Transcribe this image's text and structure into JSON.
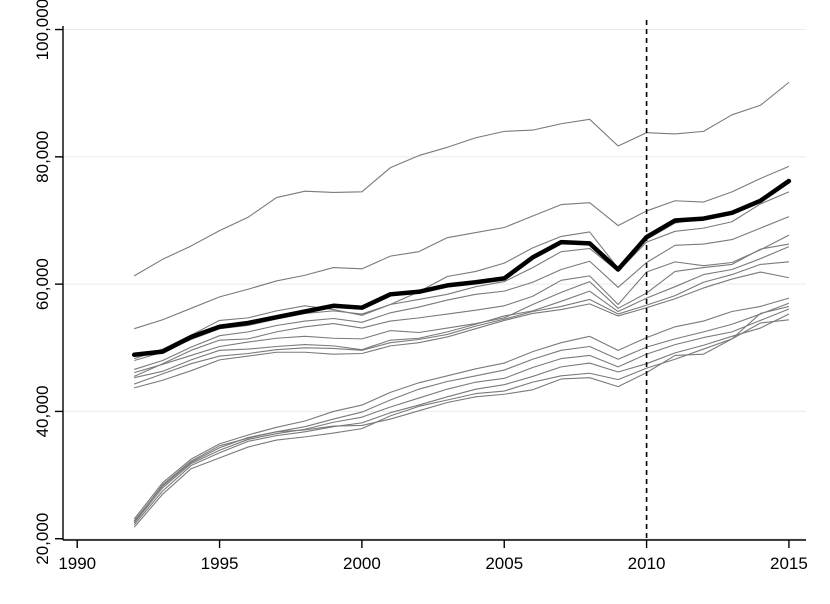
{
  "chart_data": {
    "type": "line",
    "title": "",
    "xlabel": "",
    "ylabel": "",
    "xlim": [
      1989.5,
      2015.6
    ],
    "ylim": [
      19800,
      101500
    ],
    "x_ticks": [
      1990,
      1995,
      2000,
      2005,
      2010,
      2015
    ],
    "x_tick_labels": [
      "1990",
      "1995",
      "2000",
      "2005",
      "2010",
      "2015"
    ],
    "y_ticks": [
      20000,
      40000,
      60000,
      80000,
      100000
    ],
    "y_tick_labels": [
      "20,000",
      "40,000",
      "60,000",
      "80,000",
      "100,000"
    ],
    "grid": "horizontal",
    "legend": "none",
    "reference_line": {
      "x": 2010,
      "style": "dashed"
    },
    "colors": {
      "highlight": "#000000",
      "series": "#7a7a7a",
      "grid": "#e6ecef"
    },
    "x": [
      1992,
      1993,
      1994,
      1995,
      1996,
      1997,
      1998,
      1999,
      2000,
      2001,
      2002,
      2003,
      2004,
      2005,
      2006,
      2007,
      2008,
      2009,
      2010,
      2011,
      2012,
      2013,
      2014,
      2015
    ],
    "highlight": {
      "values": [
        48900,
        49400,
        51700,
        53300,
        53900,
        54800,
        55700,
        56600,
        56300,
        58400,
        58800,
        59800,
        60300,
        60900,
        64200,
        66600,
        66400,
        62300,
        67400,
        70000,
        70300,
        71200,
        73100,
        76200
      ]
    },
    "series": [
      {
        "values": [
          61300,
          63900,
          66000,
          68400,
          70500,
          73600,
          74600,
          74400,
          74500,
          78300,
          80200,
          81500,
          83000,
          84000,
          84200,
          85200,
          85900,
          81700,
          83800,
          83600,
          84000,
          86600,
          88100,
          91700
        ]
      },
      {
        "values": [
          53000,
          54400,
          56200,
          58000,
          59200,
          60500,
          61400,
          62600,
          62400,
          64400,
          65100,
          67300,
          68100,
          68900,
          70700,
          72500,
          72800,
          69200,
          71500,
          73100,
          72900,
          74500,
          76600,
          78500
        ]
      },
      {
        "values": [
          48300,
          49800,
          52000,
          54300,
          54700,
          55800,
          56600,
          56000,
          55100,
          56800,
          58800,
          61200,
          62000,
          63300,
          65700,
          67500,
          68200,
          62500,
          67000,
          69600,
          70400,
          71300,
          73400,
          76500
        ]
      },
      {
        "values": [
          48000,
          49300,
          51300,
          53000,
          53500,
          54500,
          55400,
          55800,
          55300,
          56800,
          57600,
          58400,
          59600,
          60400,
          62600,
          65100,
          65600,
          62000,
          66600,
          68300,
          68800,
          69800,
          72600,
          74500
        ]
      },
      {
        "values": [
          46600,
          48000,
          50100,
          51900,
          52500,
          53500,
          54200,
          54600,
          54000,
          55500,
          56400,
          57500,
          58400,
          58900,
          60300,
          62300,
          63600,
          59500,
          63400,
          66100,
          66300,
          67000,
          68800,
          70600
        ]
      },
      {
        "values": [
          45500,
          47500,
          49600,
          51200,
          51400,
          52500,
          53300,
          53800,
          53100,
          54200,
          54700,
          55300,
          55900,
          56600,
          58100,
          60600,
          61300,
          56800,
          61900,
          63500,
          62900,
          63400,
          65400,
          67700
        ]
      },
      {
        "values": [
          46100,
          47400,
          48800,
          50200,
          50900,
          51500,
          51800,
          51500,
          51400,
          52700,
          52400,
          53100,
          53800,
          54700,
          56800,
          58700,
          60400,
          56200,
          58600,
          62000,
          62600,
          63100,
          65500,
          66300
        ]
      },
      {
        "values": [
          45300,
          46300,
          48100,
          49600,
          49800,
          50200,
          50500,
          50300,
          49700,
          51200,
          51500,
          52500,
          53700,
          55000,
          55800,
          57300,
          58900,
          55700,
          57800,
          59600,
          61500,
          62300,
          64000,
          65900
        ]
      },
      {
        "values": [
          44300,
          45900,
          47500,
          48700,
          49100,
          49700,
          50000,
          49900,
          49600,
          50800,
          51300,
          52100,
          53400,
          54500,
          55700,
          56500,
          57600,
          55300,
          56700,
          58200,
          60300,
          61500,
          63100,
          63500
        ]
      },
      {
        "values": [
          43700,
          44900,
          46400,
          48100,
          48700,
          49300,
          49300,
          49000,
          49100,
          50300,
          50800,
          51700,
          53000,
          54300,
          55400,
          56000,
          56900,
          55000,
          56300,
          57700,
          59400,
          60800,
          61900,
          61000
        ]
      },
      {
        "values": [
          23100,
          28800,
          32500,
          34900,
          36300,
          37500,
          38500,
          40000,
          41000,
          43000,
          44500,
          45600,
          46700,
          47600,
          49400,
          50800,
          51800,
          49600,
          51600,
          53300,
          54200,
          55700,
          56500,
          57800
        ]
      },
      {
        "values": [
          22800,
          28300,
          32000,
          34300,
          35900,
          36800,
          37600,
          38800,
          39900,
          41800,
          43500,
          44700,
          45600,
          46500,
          48200,
          49600,
          50200,
          48200,
          50100,
          51400,
          52500,
          53700,
          55300,
          57000
        ]
      },
      {
        "values": [
          22500,
          28000,
          31800,
          33900,
          35600,
          36500,
          37200,
          38300,
          39100,
          40700,
          42100,
          43500,
          44600,
          45200,
          46900,
          48300,
          48800,
          47000,
          49000,
          50500,
          51600,
          52500,
          54300,
          56100
        ]
      },
      {
        "values": [
          22200,
          27500,
          31500,
          33500,
          35300,
          36200,
          36800,
          37600,
          38200,
          39800,
          41000,
          42300,
          43500,
          44200,
          45500,
          47000,
          47600,
          46200,
          47500,
          49200,
          50400,
          51800,
          53100,
          55300
        ]
      },
      {
        "values": [
          21800,
          27000,
          31000,
          32700,
          34400,
          35500,
          36000,
          36600,
          37300,
          39300,
          40800,
          41800,
          42800,
          43200,
          44600,
          45600,
          46000,
          45000,
          46800,
          48200,
          49800,
          51400,
          53900,
          54400
        ]
      },
      {
        "values": [
          22600,
          28500,
          32200,
          34600,
          35800,
          36800,
          37100,
          37700,
          37800,
          38800,
          40100,
          41400,
          42300,
          42700,
          43400,
          45100,
          45300,
          43900,
          46100,
          48800,
          49000,
          51400,
          55400,
          56500
        ]
      }
    ]
  }
}
